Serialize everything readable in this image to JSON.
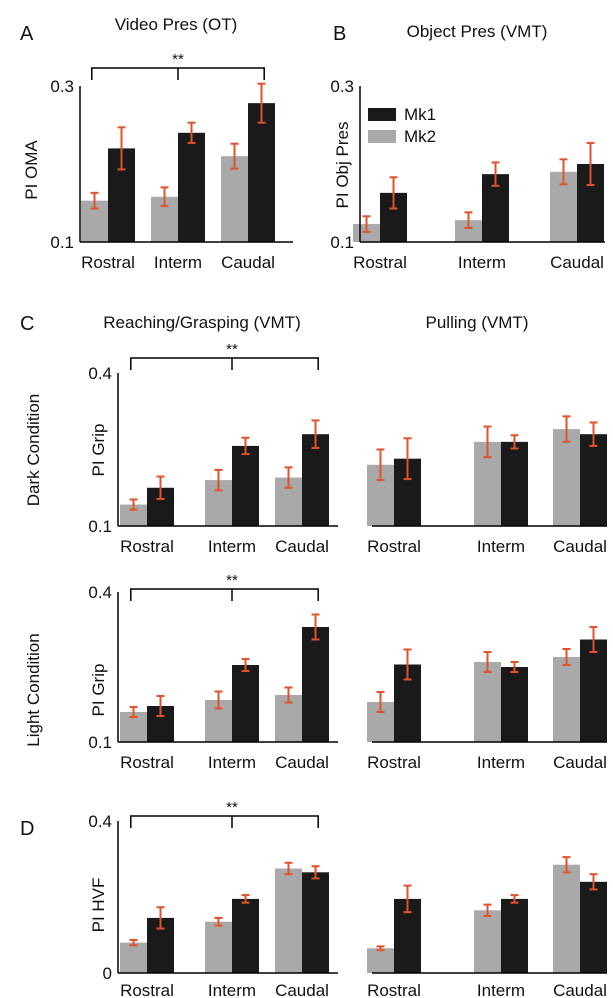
{
  "colors": {
    "mk1": "#1a1a1a",
    "mk2": "#a9a9a9",
    "error": "#e0522a",
    "axis": "#000000"
  },
  "panel_letters": [
    "A",
    "B",
    "C",
    "D"
  ],
  "significance_marker": "**",
  "chart_data": [
    {
      "id": "video_pres",
      "type": "bar",
      "title": "Video Pres (OT)",
      "ylabel": "PI OMA",
      "ylim": [
        0.1,
        0.3
      ],
      "yticks": [
        "0.1",
        "0.3"
      ],
      "categories": [
        "Rostral",
        "Interm",
        "Caudal"
      ],
      "series": [
        {
          "name": "Mk2",
          "values": [
            0.153,
            0.158,
            0.21
          ],
          "errors": [
            0.01,
            0.012,
            0.016
          ]
        },
        {
          "name": "Mk1",
          "values": [
            0.22,
            0.24,
            0.278
          ],
          "errors": [
            0.027,
            0.013,
            0.025
          ]
        }
      ],
      "grid": false,
      "significance": {
        "from": 0,
        "to": 2,
        "label": "**"
      }
    },
    {
      "id": "object_pres",
      "type": "bar",
      "title": "Object Pres (VMT)",
      "ylabel": "PI Obj Pres",
      "ylim": [
        0.1,
        0.3
      ],
      "yticks": [
        "0.1",
        "0.3"
      ],
      "categories": [
        "Rostral",
        "Interm",
        "Caudal"
      ],
      "series": [
        {
          "name": "Mk2",
          "values": [
            0.123,
            0.128,
            0.19
          ],
          "errors": [
            0.01,
            0.01,
            0.016
          ]
        },
        {
          "name": "Mk1",
          "values": [
            0.163,
            0.187,
            0.2
          ],
          "errors": [
            0.02,
            0.015,
            0.027
          ]
        }
      ],
      "legend": {
        "position": "top-left",
        "entries": [
          "Mk1",
          "Mk2"
        ]
      },
      "grid": false
    },
    {
      "id": "reach_dark",
      "type": "bar",
      "title": "Reaching/Grasping (VMT)",
      "ylabel": "PI Grip",
      "row_label": "Dark Condition",
      "ylim": [
        0.1,
        0.4
      ],
      "yticks": [
        "0.1",
        "0.4"
      ],
      "categories": [
        "Rostral",
        "Interm",
        "Caudal"
      ],
      "series": [
        {
          "name": "Mk2",
          "values": [
            0.142,
            0.19,
            0.195
          ],
          "errors": [
            0.01,
            0.02,
            0.02
          ]
        },
        {
          "name": "Mk1",
          "values": [
            0.175,
            0.257,
            0.28
          ],
          "errors": [
            0.022,
            0.016,
            0.027
          ]
        }
      ],
      "grid": false,
      "significance": {
        "from": 0,
        "to": 2,
        "label": "**"
      }
    },
    {
      "id": "pull_dark",
      "type": "bar",
      "title": "Pulling (VMT)",
      "ylim": [
        0.1,
        0.4
      ],
      "categories": [
        "Rostral",
        "Interm",
        "Caudal"
      ],
      "series": [
        {
          "name": "Mk2",
          "values": [
            0.22,
            0.265,
            0.29
          ],
          "errors": [
            0.03,
            0.03,
            0.025
          ]
        },
        {
          "name": "Mk1",
          "values": [
            0.232,
            0.265,
            0.28
          ],
          "errors": [
            0.04,
            0.013,
            0.023
          ]
        }
      ],
      "grid": false
    },
    {
      "id": "reach_light",
      "type": "bar",
      "ylabel": "PI Grip",
      "row_label": "Light Condition",
      "ylim": [
        0.1,
        0.4
      ],
      "yticks": [
        "0.1",
        "0.4"
      ],
      "categories": [
        "Rostral",
        "Interm",
        "Caudal"
      ],
      "series": [
        {
          "name": "Mk2",
          "values": [
            0.16,
            0.184,
            0.194
          ],
          "errors": [
            0.01,
            0.017,
            0.015
          ]
        },
        {
          "name": "Mk1",
          "values": [
            0.172,
            0.254,
            0.33
          ],
          "errors": [
            0.02,
            0.012,
            0.025
          ]
        }
      ],
      "grid": false,
      "significance": {
        "from": 0,
        "to": 2,
        "label": "**"
      }
    },
    {
      "id": "pull_light",
      "type": "bar",
      "ylim": [
        0.1,
        0.4
      ],
      "categories": [
        "Rostral",
        "Interm",
        "Caudal"
      ],
      "series": [
        {
          "name": "Mk2",
          "values": [
            0.18,
            0.26,
            0.27
          ],
          "errors": [
            0.02,
            0.02,
            0.016
          ]
        },
        {
          "name": "Mk1",
          "values": [
            0.255,
            0.25,
            0.305
          ],
          "errors": [
            0.03,
            0.01,
            0.025
          ]
        }
      ],
      "grid": false
    },
    {
      "id": "hvf_reach",
      "type": "bar",
      "ylabel": "PI HVF",
      "ylim": [
        0,
        0.4
      ],
      "yticks": [
        "0",
        "0.4"
      ],
      "categories": [
        "Rostral",
        "Interm",
        "Caudal"
      ],
      "series": [
        {
          "name": "Mk2",
          "values": [
            0.08,
            0.135,
            0.275
          ],
          "errors": [
            0.007,
            0.01,
            0.015
          ]
        },
        {
          "name": "Mk1",
          "values": [
            0.145,
            0.195,
            0.265
          ],
          "errors": [
            0.028,
            0.01,
            0.016
          ]
        }
      ],
      "grid": false,
      "significance": {
        "from": 0,
        "to": 2,
        "label": "**"
      }
    },
    {
      "id": "hvf_pull",
      "type": "bar",
      "ylim": [
        0,
        0.4
      ],
      "categories": [
        "Rostral",
        "Interm",
        "Caudal"
      ],
      "series": [
        {
          "name": "Mk2",
          "values": [
            0.065,
            0.165,
            0.285
          ],
          "errors": [
            0.005,
            0.015,
            0.02
          ]
        },
        {
          "name": "Mk1",
          "values": [
            0.195,
            0.195,
            0.24
          ],
          "errors": [
            0.035,
            0.01,
            0.02
          ]
        }
      ],
      "grid": false
    }
  ]
}
